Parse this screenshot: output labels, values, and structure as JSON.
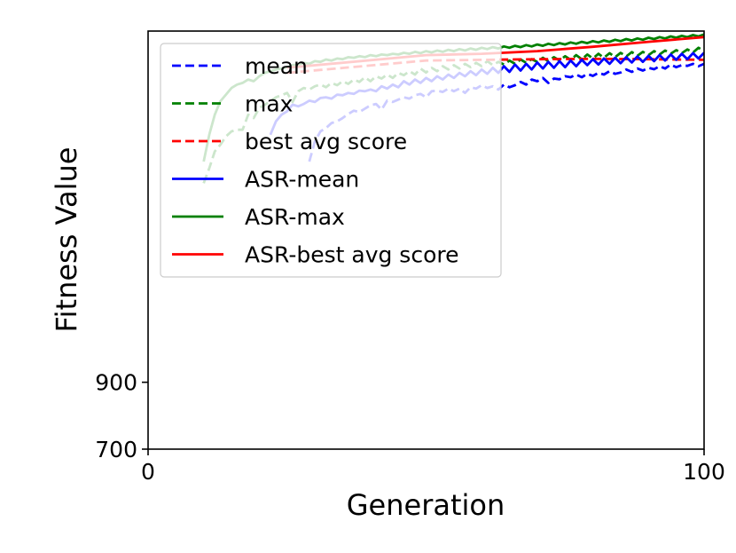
{
  "chart_data": {
    "type": "line",
    "xlabel": "Generation",
    "ylabel": "Fitness Value",
    "xlim": [
      0,
      100
    ],
    "ylim": [
      700,
      1950
    ],
    "xticks": [
      0,
      100
    ],
    "yticks": [
      700,
      900
    ],
    "grid": false,
    "legend_position": "top-left",
    "series": [
      {
        "name": "mean",
        "color": "#0000ff",
        "dash": true,
        "x": [
          29,
          30,
          31,
          32,
          33,
          34,
          35,
          36,
          37,
          38,
          39,
          40,
          41,
          42,
          43,
          44,
          45,
          46,
          47,
          48,
          49,
          50,
          51,
          52,
          53,
          54,
          55,
          56,
          57,
          58,
          59,
          60,
          61,
          62,
          63,
          64,
          65,
          66,
          67,
          68,
          69,
          70,
          71,
          72,
          73,
          74,
          75,
          76,
          77,
          78,
          79,
          80,
          81,
          82,
          83,
          84,
          85,
          86,
          87,
          88,
          89,
          90,
          91,
          92,
          93,
          94,
          95,
          96,
          97,
          98,
          99,
          100
        ],
        "y": [
          1560,
          1620,
          1650,
          1660,
          1675,
          1680,
          1690,
          1702,
          1712,
          1708,
          1718,
          1728,
          1732,
          1715,
          1742,
          1738,
          1745,
          1752,
          1748,
          1758,
          1762,
          1752,
          1770,
          1772,
          1768,
          1778,
          1770,
          1778,
          1765,
          1782,
          1778,
          1788,
          1780,
          1785,
          1775,
          1790,
          1782,
          1788,
          1798,
          1790,
          1805,
          1800,
          1810,
          1795,
          1808,
          1806,
          1815,
          1812,
          1820,
          1812,
          1822,
          1816,
          1825,
          1820,
          1830,
          1822,
          1826,
          1835,
          1828,
          1838,
          1832,
          1840,
          1836,
          1845,
          1838,
          1850,
          1842,
          1848,
          1846,
          1852,
          1845,
          1852
        ]
      },
      {
        "name": "max",
        "color": "#008000",
        "dash": true,
        "x": [
          10,
          11,
          12,
          13,
          14,
          15,
          16,
          17,
          18,
          19,
          20,
          21,
          22,
          23,
          24,
          25,
          26,
          27,
          28,
          29,
          30,
          31,
          32,
          33,
          34,
          35,
          36,
          37,
          38,
          39,
          40,
          41,
          42,
          43,
          44,
          45,
          46,
          47,
          48,
          49,
          50,
          51,
          52,
          53,
          54,
          55,
          56,
          57,
          58,
          59,
          60,
          61,
          62,
          63,
          64,
          65,
          66,
          67,
          68,
          69,
          70,
          71,
          72,
          73,
          74,
          75,
          76,
          77,
          78,
          79,
          80,
          81,
          82,
          83,
          84,
          85,
          86,
          87,
          88,
          89,
          90,
          91,
          92,
          93,
          94,
          95,
          96,
          97,
          98,
          99,
          100
        ],
        "y": [
          1495,
          1540,
          1590,
          1610,
          1635,
          1650,
          1655,
          1655,
          1700,
          1690,
          1720,
          1730,
          1740,
          1752,
          1758,
          1765,
          1738,
          1770,
          1780,
          1775,
          1785,
          1790,
          1782,
          1795,
          1788,
          1800,
          1792,
          1805,
          1798,
          1812,
          1800,
          1815,
          1808,
          1820,
          1810,
          1825,
          1818,
          1830,
          1820,
          1838,
          1826,
          1840,
          1830,
          1845,
          1835,
          1848,
          1838,
          1852,
          1842,
          1855,
          1845,
          1860,
          1848,
          1858,
          1850,
          1862,
          1852,
          1865,
          1855,
          1866,
          1858,
          1870,
          1860,
          1872,
          1862,
          1875,
          1864,
          1878,
          1866,
          1880,
          1868,
          1882,
          1870,
          1884,
          1872,
          1885,
          1874,
          1887,
          1876,
          1888,
          1878,
          1890,
          1880,
          1892,
          1882,
          1893,
          1884,
          1895,
          1886,
          1900,
          1890
        ]
      },
      {
        "name": "best avg score",
        "color": "#ff0000",
        "dash": true,
        "x": [
          25,
          50,
          60,
          70,
          80,
          90,
          100
        ],
        "y": [
          1825,
          1862,
          1864,
          1866,
          1867,
          1866,
          1864
        ]
      },
      {
        "name": "ASR-mean",
        "color": "#0000ff",
        "dash": false,
        "x": [
          22,
          23,
          24,
          25,
          26,
          27,
          28,
          29,
          30,
          31,
          32,
          33,
          34,
          35,
          36,
          37,
          38,
          39,
          40,
          41,
          42,
          43,
          44,
          45,
          46,
          47,
          48,
          49,
          50,
          51,
          52,
          53,
          54,
          55,
          56,
          57,
          58,
          59,
          60,
          61,
          62,
          63,
          64,
          65,
          66,
          67,
          68,
          69,
          70,
          71,
          72,
          73,
          74,
          75,
          76,
          77,
          78,
          79,
          80,
          81,
          82,
          83,
          84,
          85,
          86,
          87,
          88,
          89,
          90,
          91,
          92,
          93,
          94,
          95,
          96,
          97,
          98,
          99,
          100
        ],
        "y": [
          1640,
          1680,
          1700,
          1710,
          1730,
          1725,
          1732,
          1742,
          1738,
          1750,
          1752,
          1748,
          1760,
          1758,
          1765,
          1762,
          1772,
          1770,
          1775,
          1770,
          1785,
          1778,
          1790,
          1782,
          1800,
          1790,
          1805,
          1795,
          1810,
          1800,
          1815,
          1805,
          1820,
          1810,
          1825,
          1815,
          1830,
          1818,
          1835,
          1822,
          1840,
          1825,
          1845,
          1828,
          1850,
          1832,
          1852,
          1835,
          1856,
          1838,
          1858,
          1840,
          1860,
          1842,
          1862,
          1845,
          1864,
          1848,
          1866,
          1850,
          1868,
          1852,
          1870,
          1854,
          1872,
          1856,
          1874,
          1858,
          1876,
          1860,
          1878,
          1862,
          1880,
          1864,
          1882,
          1866,
          1884,
          1868,
          1885
        ]
      },
      {
        "name": "ASR-max",
        "color": "#008000",
        "dash": false,
        "x": [
          10,
          11,
          12,
          13,
          14,
          15,
          16,
          17,
          18,
          19,
          20,
          21,
          22,
          23,
          24,
          25,
          26,
          27,
          28,
          29,
          30,
          31,
          32,
          33,
          34,
          35,
          36,
          37,
          38,
          39,
          40,
          41,
          42,
          43,
          44,
          45,
          46,
          47,
          48,
          49,
          50,
          51,
          52,
          53,
          54,
          55,
          56,
          57,
          58,
          59,
          60,
          61,
          62,
          63,
          64,
          65,
          66,
          67,
          68,
          69,
          70,
          71,
          72,
          73,
          74,
          75,
          76,
          77,
          78,
          79,
          80,
          81,
          82,
          83,
          84,
          85,
          86,
          87,
          88,
          89,
          90,
          91,
          92,
          93,
          94,
          95,
          96,
          97,
          98,
          99,
          100
        ],
        "y": [
          1560,
          1640,
          1700,
          1740,
          1760,
          1780,
          1790,
          1795,
          1805,
          1800,
          1815,
          1825,
          1830,
          1835,
          1838,
          1842,
          1848,
          1850,
          1855,
          1852,
          1860,
          1858,
          1865,
          1862,
          1868,
          1866,
          1872,
          1870,
          1875,
          1872,
          1878,
          1875,
          1880,
          1878,
          1882,
          1880,
          1885,
          1882,
          1888,
          1884,
          1890,
          1886,
          1892,
          1888,
          1894,
          1890,
          1896,
          1892,
          1898,
          1894,
          1900,
          1896,
          1902,
          1898,
          1904,
          1900,
          1906,
          1902,
          1908,
          1904,
          1910,
          1906,
          1912,
          1908,
          1914,
          1910,
          1916,
          1912,
          1918,
          1914,
          1920,
          1916,
          1922,
          1918,
          1924,
          1920,
          1926,
          1922,
          1928,
          1924,
          1930,
          1926,
          1932,
          1928,
          1934,
          1930,
          1936,
          1932,
          1938,
          1934,
          1940
        ]
      },
      {
        "name": "ASR-best avg score",
        "color": "#ff0000",
        "dash": false,
        "x": [
          25,
          50,
          60,
          70,
          80,
          90,
          100
        ],
        "y": [
          1840,
          1878,
          1882,
          1890,
          1903,
          1918,
          1932
        ]
      }
    ]
  }
}
